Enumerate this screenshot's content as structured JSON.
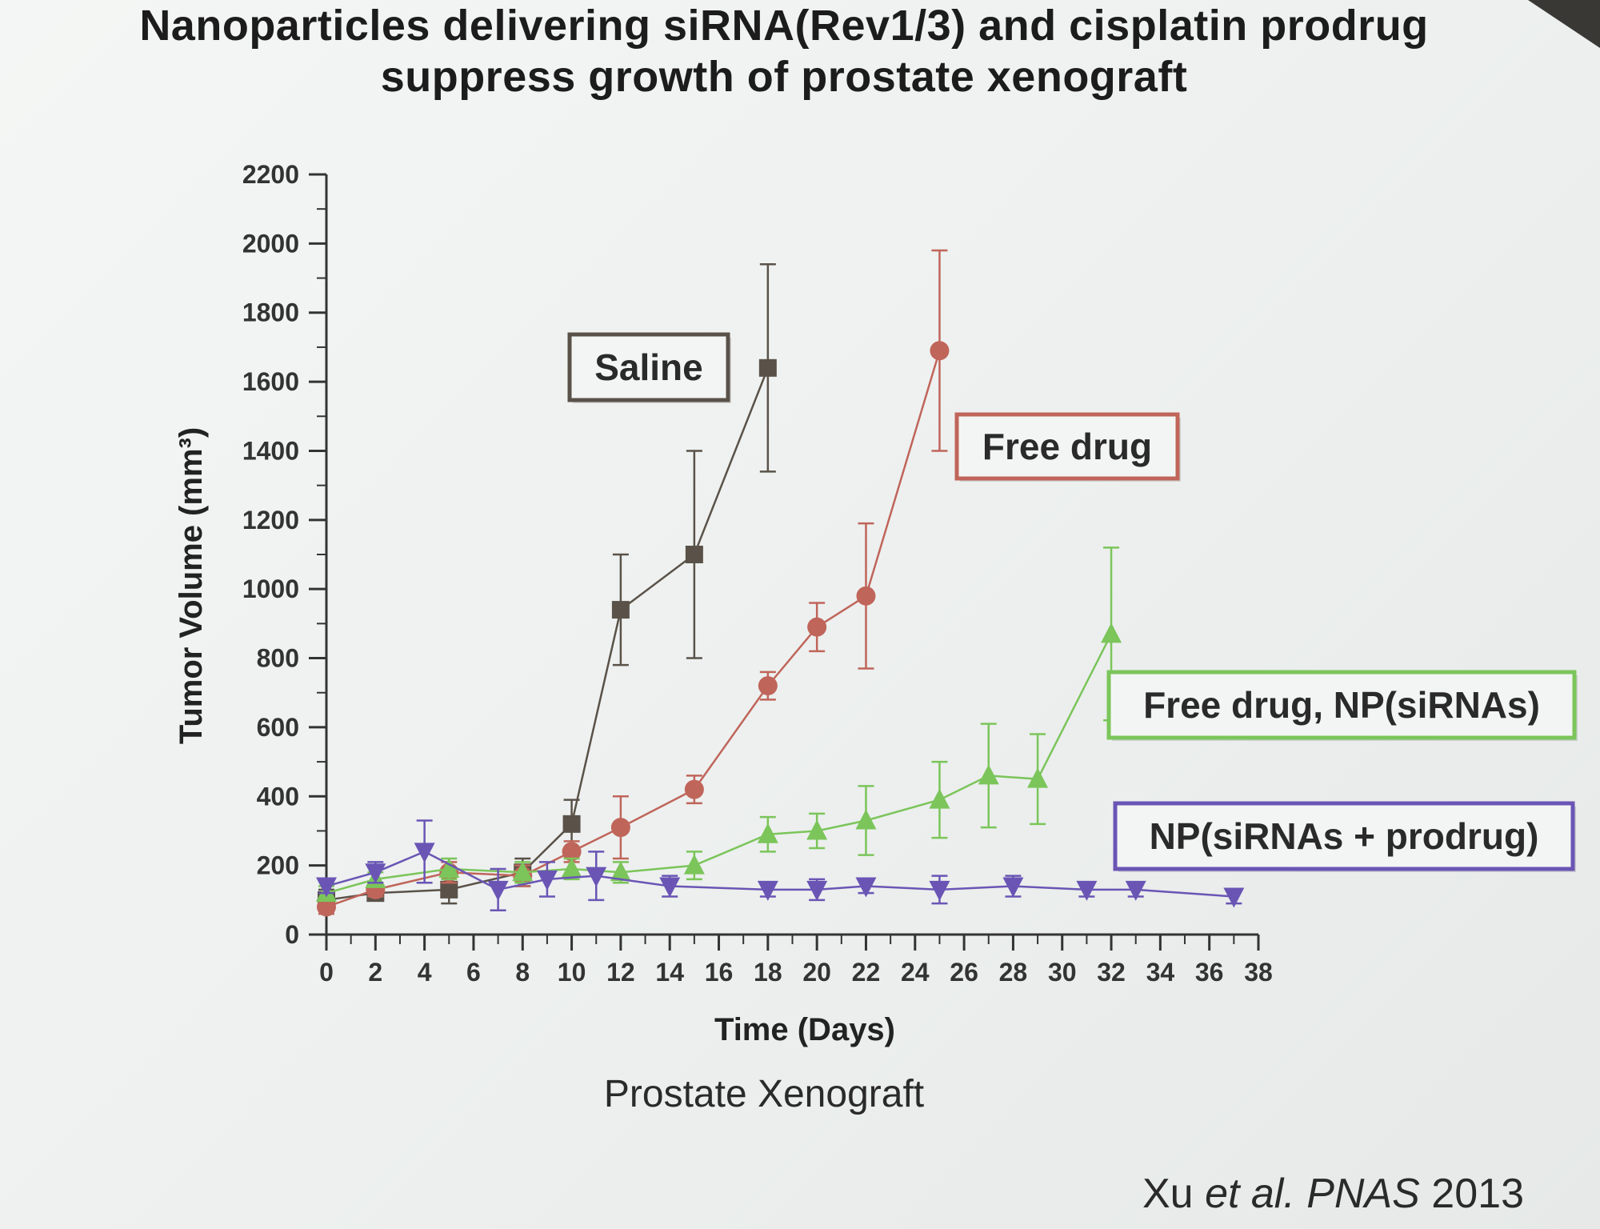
{
  "slide": {
    "title": "Nanoparticles delivering siRNA(Rev1/3) and cisplatin prodrug suppress growth of prostate xenograft",
    "subtitle": "Prostate Xenograft",
    "citation_authors": "Xu ",
    "citation_etal": "et al.",
    "citation_journal": " PNAS",
    "citation_year": " 2013"
  },
  "chart_data": {
    "type": "line",
    "title": "",
    "xlabel": "Time (Days)",
    "ylabel": "Tumor Volume (mm³)",
    "xlim": [
      0,
      38
    ],
    "ylim": [
      0,
      2200
    ],
    "xticks": [
      0,
      2,
      4,
      6,
      8,
      10,
      12,
      14,
      16,
      18,
      20,
      22,
      24,
      26,
      28,
      30,
      32,
      34,
      36,
      38
    ],
    "yticks": [
      0,
      200,
      400,
      600,
      800,
      1000,
      1200,
      1400,
      1600,
      1800,
      2000,
      2200
    ],
    "grid": false,
    "legend": "boxed labels placed next to each curve",
    "series": [
      {
        "name": "Saline",
        "color": "#5a5248",
        "marker": "square",
        "x": [
          0,
          2,
          5,
          8,
          10,
          12,
          15,
          18
        ],
        "y": [
          100,
          120,
          130,
          180,
          320,
          940,
          1100,
          1640
        ],
        "err": [
          30,
          20,
          40,
          40,
          70,
          160,
          300,
          300
        ]
      },
      {
        "name": "Free drug",
        "color": "#c0655a",
        "marker": "circle",
        "x": [
          0,
          2,
          5,
          8,
          10,
          12,
          15,
          18,
          20,
          22,
          25
        ],
        "y": [
          80,
          130,
          180,
          170,
          240,
          310,
          420,
          720,
          890,
          980,
          1690
        ],
        "err": [
          20,
          20,
          30,
          30,
          30,
          90,
          40,
          40,
          70,
          210,
          290
        ]
      },
      {
        "name": "Free drug, NP(siRNAs)",
        "color": "#7bc55a",
        "marker": "triangle-up",
        "x": [
          0,
          2,
          5,
          8,
          10,
          12,
          15,
          18,
          20,
          22,
          25,
          27,
          29,
          32
        ],
        "y": [
          120,
          160,
          190,
          180,
          190,
          180,
          200,
          290,
          300,
          330,
          390,
          460,
          450,
          870
        ],
        "err": [
          20,
          20,
          30,
          30,
          30,
          30,
          40,
          50,
          50,
          100,
          110,
          150,
          130,
          250
        ]
      },
      {
        "name": "NP(siRNAs + prodrug)",
        "color": "#6a55b5",
        "marker": "triangle-down",
        "x": [
          0,
          2,
          4,
          7,
          9,
          11,
          14,
          18,
          20,
          22,
          25,
          28,
          31,
          33,
          37
        ],
        "y": [
          140,
          180,
          240,
          130,
          160,
          170,
          140,
          130,
          130,
          140,
          130,
          140,
          130,
          130,
          110
        ],
        "err": [
          20,
          30,
          90,
          60,
          50,
          70,
          30,
          20,
          30,
          20,
          40,
          30,
          20,
          20,
          20
        ]
      }
    ]
  }
}
